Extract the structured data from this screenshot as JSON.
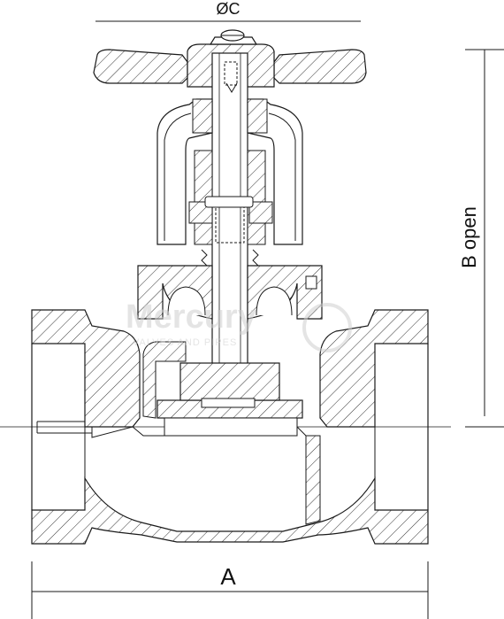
{
  "dimensions": {
    "width_label": "A",
    "height_label": "B open",
    "handwheel_label": "ØC"
  },
  "watermark": {
    "brand": "Mercury",
    "tagline": "VALVES AND PIPES"
  },
  "colors": {
    "line": "#1a1a1a",
    "hatch": "#333333",
    "watermark": "#cfcfcf"
  }
}
